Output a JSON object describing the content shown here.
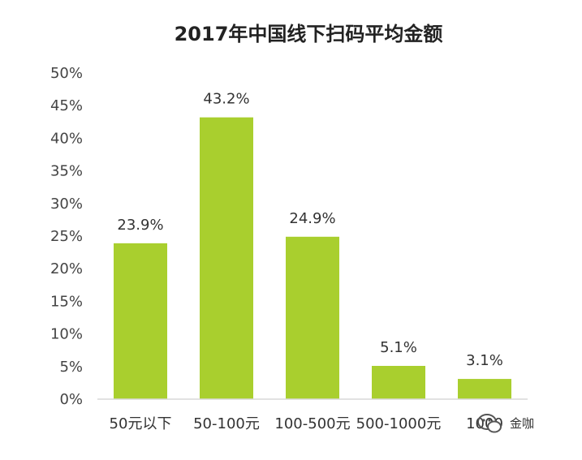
{
  "chart_data": {
    "type": "bar",
    "title": "2017年中国线下扫码平均金额",
    "xlabel": "",
    "ylabel": "",
    "categories": [
      "50元以下",
      "50-100元",
      "100-500元",
      "500-1000元",
      "1000"
    ],
    "values": [
      23.9,
      43.2,
      24.9,
      5.1,
      3.1
    ],
    "value_labels": [
      "23.9%",
      "43.2%",
      "24.9%",
      "5.1%",
      "3.1%"
    ],
    "y_ticks": [
      "0%",
      "5%",
      "10%",
      "15%",
      "20%",
      "25%",
      "30%",
      "35%",
      "40%",
      "45%",
      "50%"
    ],
    "ylim": [
      0,
      50
    ],
    "grid": false,
    "legend": "none",
    "bar_color": "#a9cf2e"
  },
  "watermark": {
    "text": "金咖"
  }
}
